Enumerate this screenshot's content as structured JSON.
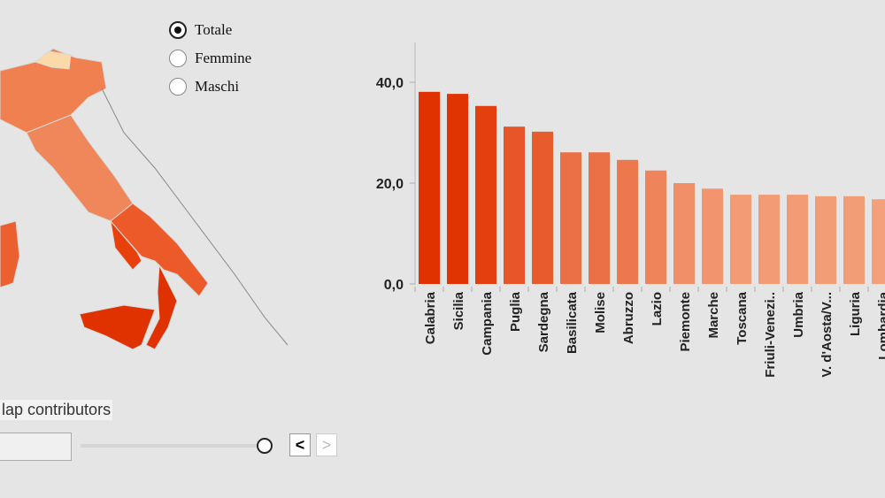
{
  "controls": {
    "options": [
      "Totale",
      "Femmine",
      "Maschi"
    ],
    "selected": "Totale",
    "attribution": "lap contributors",
    "prev": "<",
    "next": ">",
    "slider_position": 1.0
  },
  "colors": {
    "dark": "#e03200",
    "light": "#f4a07a"
  },
  "chart_data": {
    "type": "bar",
    "title": "",
    "xlabel": "",
    "ylabel": "",
    "ylim": [
      0,
      48
    ],
    "yticks": [
      "0,0",
      "20,0",
      "40,0"
    ],
    "ytick_values": [
      0,
      20,
      40
    ],
    "categories": [
      "Calabria",
      "Sicilia",
      "Campania",
      "Puglia",
      "Sardegna",
      "Basilicata",
      "Molise",
      "Abruzzo",
      "Lazio",
      "Piemonte",
      "Marche",
      "Toscana",
      "Friuli-Venezi..",
      "Umbria",
      "V. d'Aosta/V...",
      "Liguria",
      "Lombardia"
    ],
    "values": [
      38.1,
      37.7,
      35.3,
      31.2,
      30.2,
      26.1,
      26.1,
      24.6,
      22.5,
      20.0,
      18.9,
      17.7,
      17.7,
      17.7,
      17.4,
      17.4,
      16.8
    ]
  }
}
